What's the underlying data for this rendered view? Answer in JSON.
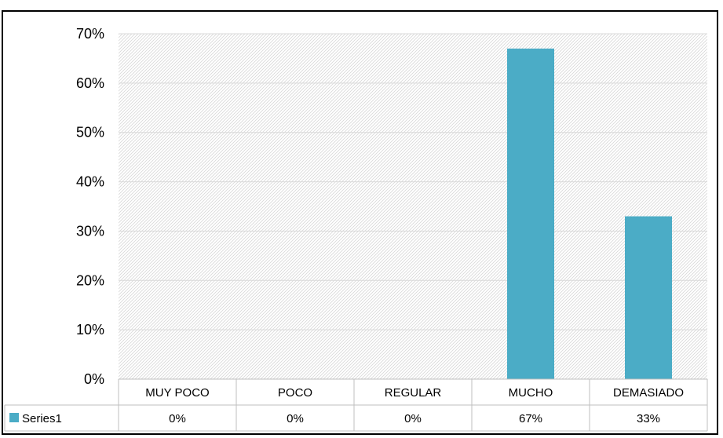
{
  "chart_data": {
    "type": "bar",
    "categories": [
      "MUY POCO",
      "POCO",
      "REGULAR",
      "MUCHO",
      "DEMASIADO"
    ],
    "series": [
      {
        "name": "Series1",
        "values": [
          0,
          0,
          0,
          67,
          33
        ],
        "labels": [
          "0%",
          "0%",
          "0%",
          "67%",
          "33%"
        ],
        "color": "#4bacc6"
      }
    ],
    "ylim": [
      0,
      70
    ],
    "yticks": [
      0,
      10,
      20,
      30,
      40,
      50,
      60,
      70
    ],
    "ytick_labels": [
      "0%",
      "10%",
      "20%",
      "30%",
      "40%",
      "50%",
      "60%",
      "70%"
    ],
    "grid": true,
    "data_table": true,
    "title": "",
    "xlabel": "",
    "ylabel": ""
  }
}
